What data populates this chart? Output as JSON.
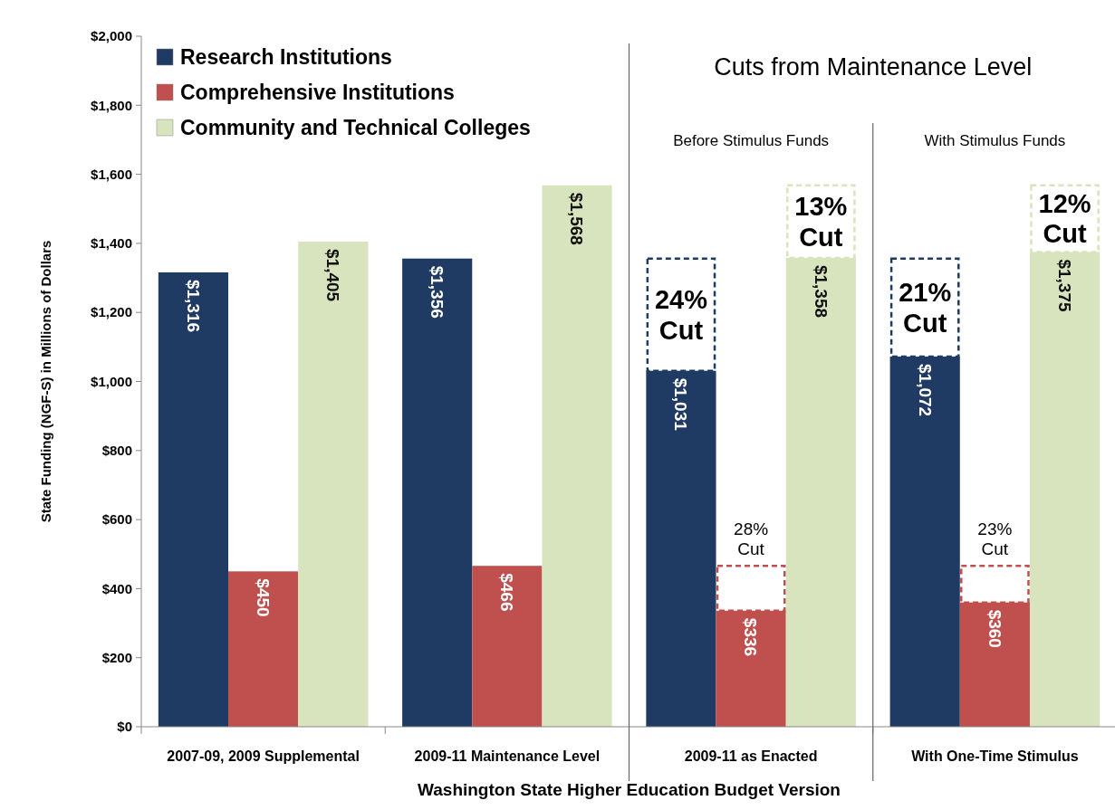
{
  "chart_data": {
    "type": "bar",
    "xlabel": "Washington State Higher Education Budget Version",
    "ylabel": "State Funding (NGF-S) in Millions of Dollars",
    "categories": [
      "2007-09, 2009 Supplemental",
      "2009-11 Maintenance Level",
      "2009-11 as Enacted",
      "With One-Time Stimulus"
    ],
    "series": [
      {
        "name": "Research Institutions",
        "color": "#1f3a63",
        "values": [
          1316,
          1356,
          1031,
          1072
        ],
        "value_labels": [
          "$1,316",
          "$1,356",
          "$1,031",
          "$1,072"
        ]
      },
      {
        "name": "Comprehensive Institutions",
        "color": "#c0504d",
        "values": [
          450,
          466,
          336,
          360
        ],
        "value_labels": [
          "$450",
          "$466",
          "$336",
          "$360"
        ]
      },
      {
        "name": "Community and Technical Colleges",
        "color": "#d7e4bd",
        "values": [
          1405,
          1568,
          1358,
          1375
        ],
        "value_labels": [
          "$1,405",
          "$1,568",
          "$1,358",
          "$1,375"
        ]
      }
    ],
    "ylim": [
      0,
      2000
    ],
    "yticks": [
      {
        "value": 0,
        "label": "$0"
      },
      {
        "value": 200,
        "label": "$200"
      },
      {
        "value": 400,
        "label": "$400"
      },
      {
        "value": 600,
        "label": "$600"
      },
      {
        "value": 800,
        "label": "$800"
      },
      {
        "value": 1000,
        "label": "$1,000"
      },
      {
        "value": 1200,
        "label": "$1,200"
      },
      {
        "value": 1400,
        "label": "$1,400"
      },
      {
        "value": 1600,
        "label": "$1,600"
      },
      {
        "value": 1800,
        "label": "$1,800"
      },
      {
        "value": 2000,
        "label": "$2,000"
      }
    ],
    "legend": "top left",
    "annotations": [
      "Cuts from Maintenance Level",
      "Before Stimulus Funds",
      "With Stimulus Funds",
      "24% Cut",
      "21% Cut",
      "28% Cut",
      "23% Cut",
      "13% Cut",
      "12% Cut"
    ]
  }
}
